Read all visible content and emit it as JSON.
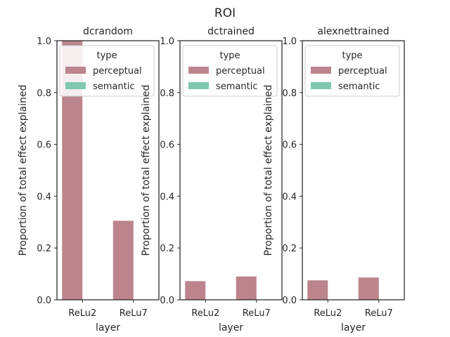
{
  "figure": {
    "suptitle": "ROI"
  },
  "colors": {
    "perceptual": "#bc848d",
    "semantic": "#7ec8b0",
    "frame": "#262626",
    "legend_frame": "#cccccc"
  },
  "legend": {
    "title": "type",
    "entries": [
      "perceptual",
      "semantic"
    ],
    "placement": "top-right"
  },
  "chart_data": [
    {
      "type": "bar",
      "title": "dcrandom",
      "xlabel": "layer",
      "ylabel": "Proportion of total effect explained",
      "categories": [
        "ReLu2",
        "ReLu7"
      ],
      "yticks": [
        "0.0",
        "0.2",
        "0.4",
        "0.6",
        "0.8",
        "1.0"
      ],
      "ylim": [
        0,
        1
      ],
      "series": [
        {
          "name": "perceptual",
          "values": [
            1.0,
            0.305
          ]
        },
        {
          "name": "semantic",
          "values": [
            0,
            0
          ]
        }
      ]
    },
    {
      "type": "bar",
      "title": "dctrained",
      "xlabel": "layer",
      "ylabel": "Proportion of total effect explained",
      "categories": [
        "ReLu2",
        "ReLu7"
      ],
      "yticks": [
        "0.0",
        "0.2",
        "0.4",
        "0.6",
        "0.8",
        "1.0"
      ],
      "ylim": [
        0,
        1
      ],
      "series": [
        {
          "name": "perceptual",
          "values": [
            0.072,
            0.09
          ]
        },
        {
          "name": "semantic",
          "values": [
            0,
            0
          ]
        }
      ]
    },
    {
      "type": "bar",
      "title": "alexnettrained",
      "xlabel": "layer",
      "ylabel": "Proportion of total effect explained",
      "categories": [
        "ReLu2",
        "ReLu7"
      ],
      "yticks": [
        "0.0",
        "0.2",
        "0.4",
        "0.6",
        "0.8",
        "1.0"
      ],
      "ylim": [
        0,
        1
      ],
      "series": [
        {
          "name": "perceptual",
          "values": [
            0.075,
            0.086
          ]
        },
        {
          "name": "semantic",
          "values": [
            0,
            0
          ]
        }
      ]
    }
  ]
}
